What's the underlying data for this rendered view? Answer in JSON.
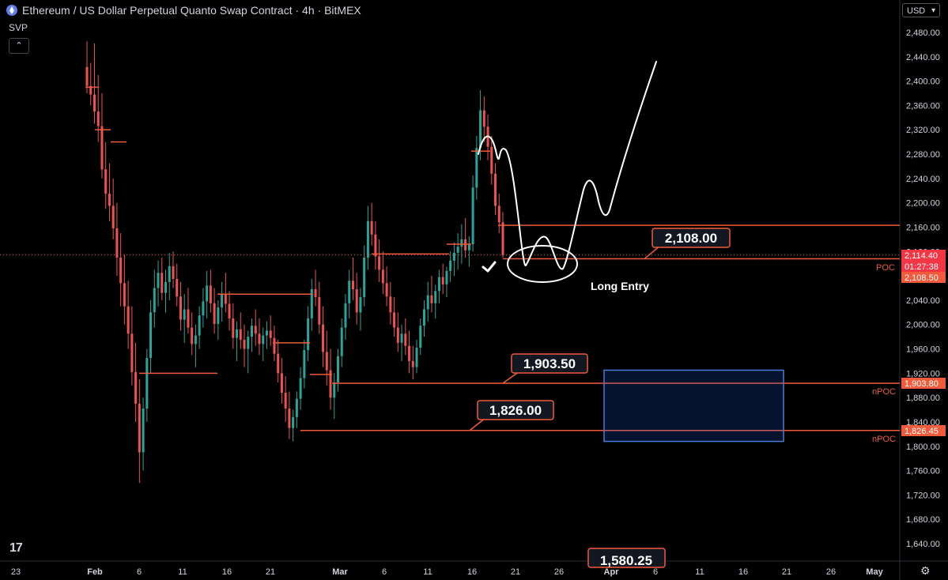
{
  "header": {
    "title": "Ethereum / US Dollar Perpetual Quanto Swap Contract · 4h · BitMEX",
    "indicator": "SVP",
    "collapse_icon": "⌃",
    "currency": "USD"
  },
  "chart_data": {
    "type": "candlestick",
    "title": "Ethereum / US Dollar Perpetual Quanto Swap Contract · 4h · BitMEX",
    "y_axis": {
      "ticks": [
        "2,480.00",
        "2,440.00",
        "2,400.00",
        "2,360.00",
        "2,320.00",
        "2,280.00",
        "2,240.00",
        "2,200.00",
        "2,160.00",
        "2,120.00",
        "2,080.00",
        "2,040.00",
        "2,000.00",
        "1,960.00",
        "1,920.00",
        "1,880.00",
        "1,840.00",
        "1,800.00",
        "1,760.00",
        "1,720.00",
        "1,680.00",
        "1,640.00"
      ],
      "ylim": [
        1620,
        2500
      ]
    },
    "x_axis": {
      "ticks": [
        "23",
        "Feb",
        "6",
        "11",
        "16",
        "21",
        "Mar",
        "6",
        "11",
        "16",
        "21",
        "26",
        "Apr",
        "6",
        "11",
        "16",
        "21",
        "26",
        "May"
      ]
    },
    "price_labels": {
      "current_price": "2,114.40",
      "countdown": "01:27:38",
      "poc_value": "2,108.50",
      "npoc_upper": "1,903.80",
      "npoc_lower": "1,826.45"
    },
    "line_labels": {
      "poc": "POC",
      "npoc": "nPOC"
    },
    "callouts": [
      "2,108.00",
      "1,903.50",
      "1,826.00",
      "1,580.25"
    ],
    "annotation": "Long Entry",
    "levels": [
      2163,
      2108,
      1903.5,
      1826
    ],
    "entry_zone": [
      1808,
      1925
    ],
    "candles": [
      [
        2423,
        2465,
        2380,
        2392
      ],
      [
        2392,
        2430,
        2360,
        2378
      ],
      [
        2378,
        2462,
        2330,
        2350
      ],
      [
        2350,
        2410,
        2300,
        2326
      ],
      [
        2326,
        2380,
        2240,
        2255
      ],
      [
        2255,
        2300,
        2190,
        2215
      ],
      [
        2215,
        2265,
        2170,
        2195
      ],
      [
        2195,
        2240,
        2140,
        2158
      ],
      [
        2158,
        2200,
        2080,
        2110
      ],
      [
        2110,
        2150,
        2030,
        2068
      ],
      [
        2068,
        2115,
        2000,
        2030
      ],
      [
        2030,
        2072,
        1960,
        1985
      ],
      [
        1985,
        2030,
        1900,
        1922
      ],
      [
        1922,
        1970,
        1840,
        1870
      ],
      [
        1870,
        1910,
        1740,
        1790
      ],
      [
        1790,
        1880,
        1760,
        1862
      ],
      [
        1862,
        1960,
        1840,
        1945
      ],
      [
        1945,
        2040,
        1920,
        2020
      ],
      [
        2020,
        2090,
        1995,
        2060
      ],
      [
        2060,
        2105,
        2030,
        2085
      ],
      [
        2085,
        2110,
        2040,
        2052
      ],
      [
        2052,
        2090,
        2020,
        2070
      ],
      [
        2070,
        2118,
        2040,
        2096
      ],
      [
        2096,
        2120,
        2060,
        2075
      ],
      [
        2075,
        2100,
        2030,
        2046
      ],
      [
        2046,
        2070,
        1990,
        2008
      ],
      [
        2008,
        2050,
        1970,
        2025
      ],
      [
        2025,
        2060,
        1985,
        1995
      ],
      [
        1995,
        2020,
        1950,
        1968
      ],
      [
        1968,
        2000,
        1930,
        1982
      ],
      [
        1982,
        2030,
        1960,
        2015
      ],
      [
        2015,
        2060,
        1995,
        2038
      ],
      [
        2038,
        2088,
        2010,
        2064
      ],
      [
        2064,
        2090,
        2020,
        2035
      ],
      [
        2035,
        2060,
        1985,
        2001
      ],
      [
        2001,
        2040,
        1975,
        2028
      ],
      [
        2028,
        2070,
        2005,
        2050
      ],
      [
        2050,
        2085,
        2020,
        2034
      ],
      [
        2034,
        2055,
        1990,
        2010
      ],
      [
        2010,
        2035,
        1960,
        1978
      ],
      [
        1978,
        2005,
        1940,
        1992
      ],
      [
        1992,
        2020,
        1960,
        1975
      ],
      [
        1975,
        2000,
        1930,
        1960
      ],
      [
        1960,
        1990,
        1920,
        1980
      ],
      [
        1980,
        2010,
        1955,
        1998
      ],
      [
        1998,
        2025,
        1965,
        1985
      ],
      [
        1985,
        2010,
        1950,
        1968
      ],
      [
        1968,
        1995,
        1940,
        1982
      ],
      [
        1982,
        2005,
        1960,
        1990
      ],
      [
        1990,
        2015,
        1965,
        1978
      ],
      [
        1978,
        1998,
        1940,
        1952
      ],
      [
        1952,
        1975,
        1905,
        1920
      ],
      [
        1920,
        1945,
        1870,
        1888
      ],
      [
        1888,
        1915,
        1840,
        1862
      ],
      [
        1862,
        1890,
        1812,
        1830
      ],
      [
        1830,
        1860,
        1808,
        1848
      ],
      [
        1848,
        1890,
        1830,
        1878
      ],
      [
        1878,
        1930,
        1860,
        1912
      ],
      [
        1912,
        1975,
        1895,
        1958
      ],
      [
        1958,
        2030,
        1940,
        2010
      ],
      [
        2010,
        2075,
        1990,
        2058
      ],
      [
        2058,
        2090,
        2030,
        2045
      ],
      [
        2045,
        2070,
        1985,
        2000
      ],
      [
        2000,
        2030,
        1930,
        1955
      ],
      [
        1955,
        1990,
        1900,
        1925
      ],
      [
        1925,
        1960,
        1860,
        1880
      ],
      [
        1880,
        1920,
        1845,
        1905
      ],
      [
        1905,
        1960,
        1890,
        1948
      ],
      [
        1948,
        2010,
        1930,
        1995
      ],
      [
        1995,
        2050,
        1975,
        2035
      ],
      [
        2035,
        2090,
        2010,
        2072
      ],
      [
        2072,
        2110,
        2040,
        2058
      ],
      [
        2058,
        2085,
        2000,
        2020
      ],
      [
        2020,
        2060,
        1990,
        2045
      ],
      [
        2045,
        2130,
        2030,
        2110
      ],
      [
        2110,
        2195,
        2090,
        2170
      ],
      [
        2170,
        2200,
        2130,
        2148
      ],
      [
        2148,
        2170,
        2090,
        2112
      ],
      [
        2112,
        2140,
        2070,
        2090
      ],
      [
        2090,
        2120,
        2050,
        2068
      ],
      [
        2068,
        2095,
        2030,
        2046
      ],
      [
        2046,
        2070,
        2000,
        2020
      ],
      [
        2020,
        2045,
        1980,
        1995
      ],
      [
        1995,
        2020,
        1955,
        1970
      ],
      [
        1970,
        2000,
        1940,
        1985
      ],
      [
        1985,
        2010,
        1950,
        1965
      ],
      [
        1965,
        1990,
        1920,
        1940
      ],
      [
        1940,
        1965,
        1910,
        1930
      ],
      [
        1930,
        1975,
        1920,
        1962
      ],
      [
        1962,
        2010,
        1950,
        1998
      ],
      [
        1998,
        2040,
        1980,
        2025
      ],
      [
        2025,
        2070,
        2005,
        2048
      ],
      [
        2048,
        2080,
        2020,
        2035
      ],
      [
        2035,
        2065,
        2010,
        2055
      ],
      [
        2055,
        2090,
        2035,
        2078
      ],
      [
        2078,
        2100,
        2050,
        2066
      ],
      [
        2066,
        2095,
        2045,
        2088
      ],
      [
        2088,
        2120,
        2070,
        2105
      ],
      [
        2105,
        2135,
        2080,
        2118
      ],
      [
        2118,
        2150,
        2090,
        2128
      ],
      [
        2128,
        2165,
        2100,
        2140
      ],
      [
        2140,
        2175,
        2110,
        2122
      ],
      [
        2122,
        2145,
        2095,
        2132
      ],
      [
        2132,
        2245,
        2120,
        2225
      ],
      [
        2225,
        2310,
        2205,
        2290
      ],
      [
        2290,
        2385,
        2270,
        2352
      ],
      [
        2352,
        2375,
        2300,
        2325
      ],
      [
        2325,
        2345,
        2270,
        2292
      ],
      [
        2292,
        2310,
        2230,
        2248
      ],
      [
        2248,
        2265,
        2180,
        2195
      ],
      [
        2195,
        2215,
        2150,
        2168
      ],
      [
        2168,
        2185,
        2110,
        2114
      ]
    ]
  }
}
